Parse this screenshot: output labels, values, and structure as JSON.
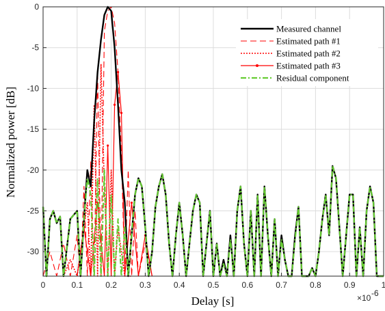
{
  "chart_data": {
    "type": "line",
    "title": "",
    "xlabel": "Delay [s]",
    "ylabel": "Normalized power [dB]",
    "x_multiplier_label": "×10",
    "x_multiplier_exponent": "-6",
    "xlim": [
      0,
      1
    ],
    "ylim": [
      -33,
      0
    ],
    "grid": true,
    "legend_position": "top-right",
    "x_ticks": [
      0,
      0.1,
      0.2,
      0.3,
      0.4,
      0.5,
      0.6,
      0.7,
      0.8,
      0.9,
      1
    ],
    "x_tick_labels": [
      "0",
      "0.1",
      "0.2",
      "0.3",
      "0.4",
      "0.5",
      "0.6",
      "0.7",
      "0.8",
      "0.9",
      "1"
    ],
    "y_ticks": [
      0,
      -5,
      -10,
      -15,
      -20,
      -25,
      -30
    ],
    "y_tick_labels": [
      "0",
      "-5",
      "-10",
      "-15",
      "-20",
      "-25",
      "-30"
    ],
    "series": [
      {
        "name": "Measured channel",
        "color": "#000000",
        "style": "solid",
        "x": [
          0,
          0.01,
          0.02,
          0.03,
          0.04,
          0.05,
          0.06,
          0.08,
          0.1,
          0.11,
          0.12,
          0.13,
          0.14,
          0.15,
          0.16,
          0.17,
          0.18,
          0.19,
          0.2,
          0.21,
          0.22,
          0.23,
          0.24,
          0.25,
          0.26,
          0.27,
          0.28,
          0.29,
          0.3,
          0.31,
          0.32,
          0.33,
          0.34,
          0.35,
          0.36,
          0.37,
          0.38,
          0.39,
          0.4,
          0.41,
          0.42,
          0.43,
          0.44,
          0.45,
          0.46,
          0.47,
          0.48,
          0.49,
          0.5,
          0.51,
          0.52,
          0.53,
          0.54,
          0.55,
          0.56,
          0.57,
          0.58,
          0.59,
          0.6,
          0.61,
          0.62,
          0.63,
          0.64,
          0.65,
          0.66,
          0.67,
          0.68,
          0.69,
          0.7,
          0.71,
          0.72,
          0.73,
          0.74,
          0.75,
          0.76,
          0.77,
          0.78,
          0.79,
          0.8,
          0.81,
          0.82,
          0.83,
          0.84,
          0.85,
          0.86,
          0.87,
          0.88,
          0.89,
          0.9,
          0.91,
          0.92,
          0.93,
          0.94,
          0.95,
          0.96,
          0.97,
          0.98,
          0.99,
          1.0
        ],
        "y": [
          -24.5,
          -33,
          -26,
          -25,
          -26.5,
          -25.7,
          -33,
          -26,
          -25,
          -33,
          -26,
          -20,
          -22,
          -14,
          -8,
          -4,
          -1,
          0,
          -0.5,
          -5,
          -12,
          -20,
          -24,
          -33,
          -28,
          -23,
          -21,
          -22,
          -27,
          -33,
          -30,
          -24.5,
          -22,
          -20.5,
          -23,
          -29,
          -33,
          -28,
          -24,
          -28,
          -33,
          -29,
          -25,
          -23,
          -24,
          -33,
          -29,
          -25,
          -33,
          -29,
          -33,
          -31,
          -33,
          -28,
          -33,
          -25,
          -22,
          -29,
          -33,
          -25,
          -33,
          -23,
          -33,
          -22,
          -28,
          -33,
          -26,
          -33,
          -28,
          -31,
          -33,
          -33,
          -28,
          -24.5,
          -33,
          -33,
          -33,
          -32,
          -33,
          -30,
          -26,
          -23,
          -28,
          -19.5,
          -21,
          -27,
          -33,
          -28,
          -23,
          -23,
          -33,
          -27,
          -33,
          -25,
          -22,
          -24,
          -33,
          -33,
          -33
        ],
        "legend_sample": "solid"
      },
      {
        "name": "Estimated path #1",
        "color": "#ff0000",
        "style": "dashed",
        "x": [
          0,
          0.02,
          0.04,
          0.06,
          0.08,
          0.1,
          0.11,
          0.12,
          0.13,
          0.14,
          0.15,
          0.16,
          0.17,
          0.18,
          0.19,
          0.2,
          0.21,
          0.22,
          0.23,
          0.24,
          0.25,
          0.26,
          0.27,
          0.28,
          0.3,
          0.32,
          0.35
        ],
        "y": [
          -33,
          -30,
          -33,
          -29,
          -33,
          -28,
          -33,
          -22,
          -33,
          -19,
          -33,
          -8,
          -33,
          -3,
          -0.5,
          0,
          -2,
          -8,
          -18,
          -33,
          -20,
          -33,
          -25,
          -33,
          -29,
          -33,
          -33
        ]
      },
      {
        "name": "Estimated path #2",
        "color": "#ff0000",
        "style": "dotted",
        "x": [
          0.06,
          0.08,
          0.1,
          0.12,
          0.13,
          0.14,
          0.15,
          0.16,
          0.17,
          0.18,
          0.19,
          0.2,
          0.21,
          0.22,
          0.24,
          0.26
        ],
        "y": [
          -33,
          -31,
          -33,
          -27,
          -24,
          -33,
          -12,
          -33,
          -7,
          -22,
          -33,
          -20,
          -33,
          -27,
          -33,
          -33
        ]
      },
      {
        "name": "Estimated path #3",
        "color": "#ff0000",
        "style": "solid-marker",
        "x": [
          0.1,
          0.12,
          0.14,
          0.16,
          0.18,
          0.19,
          0.2,
          0.21,
          0.22,
          0.23,
          0.24,
          0.26,
          0.28,
          0.3,
          0.32
        ],
        "y": [
          -33,
          -27,
          -33,
          -24,
          -33,
          -17,
          -33,
          -12,
          -8,
          -13,
          -33,
          -24,
          -33,
          -28,
          -33
        ]
      },
      {
        "name": "Residual component",
        "color": "#66cc33",
        "style": "dashdot",
        "x": [
          0,
          0.01,
          0.02,
          0.03,
          0.04,
          0.05,
          0.06,
          0.08,
          0.1,
          0.11,
          0.12,
          0.13,
          0.14,
          0.15,
          0.16,
          0.17,
          0.18,
          0.19,
          0.2,
          0.21,
          0.22,
          0.23,
          0.24,
          0.25,
          0.26,
          0.27,
          0.28,
          0.29,
          0.3,
          0.31,
          0.32,
          0.33,
          0.34,
          0.35,
          0.36,
          0.37,
          0.38,
          0.39,
          0.4,
          0.41,
          0.42,
          0.43,
          0.44,
          0.45,
          0.46,
          0.47,
          0.48,
          0.49,
          0.5,
          0.51,
          0.52,
          0.53,
          0.54,
          0.55,
          0.56,
          0.57,
          0.58,
          0.59,
          0.6,
          0.61,
          0.62,
          0.63,
          0.64,
          0.65,
          0.66,
          0.67,
          0.68,
          0.69,
          0.7,
          0.71,
          0.72,
          0.73,
          0.74,
          0.75,
          0.76,
          0.77,
          0.78,
          0.79,
          0.8,
          0.81,
          0.82,
          0.83,
          0.84,
          0.85,
          0.86,
          0.87,
          0.88,
          0.89,
          0.9,
          0.91,
          0.92,
          0.93,
          0.94,
          0.95,
          0.96,
          0.97,
          0.98,
          0.99,
          1.0
        ],
        "y": [
          -24.5,
          -33,
          -26,
          -25,
          -26.5,
          -25.7,
          -33,
          -26,
          -25,
          -33,
          -26,
          -21,
          -23,
          -33,
          -21,
          -33,
          -20,
          -33,
          -23,
          -33,
          -26,
          -33,
          -27,
          -33,
          -28,
          -23,
          -21,
          -22,
          -27,
          -33,
          -30,
          -24.5,
          -22,
          -20.5,
          -23,
          -29,
          -33,
          -28,
          -24,
          -28,
          -33,
          -29,
          -25,
          -23,
          -24,
          -33,
          -29,
          -25,
          -33,
          -29,
          -33,
          -31.5,
          -33,
          -28.5,
          -33,
          -25,
          -22,
          -29,
          -33,
          -25,
          -33,
          -23,
          -33,
          -22,
          -28,
          -33,
          -26,
          -33,
          -28.5,
          -31,
          -33,
          -33,
          -28.5,
          -24.5,
          -33,
          -33,
          -33,
          -32,
          -33,
          -30,
          -26,
          -23,
          -28,
          -19.5,
          -21,
          -27,
          -33,
          -28,
          -23,
          -23,
          -33,
          -27,
          -33,
          -25,
          -22,
          -24,
          -33,
          -33,
          -33
        ]
      }
    ]
  }
}
